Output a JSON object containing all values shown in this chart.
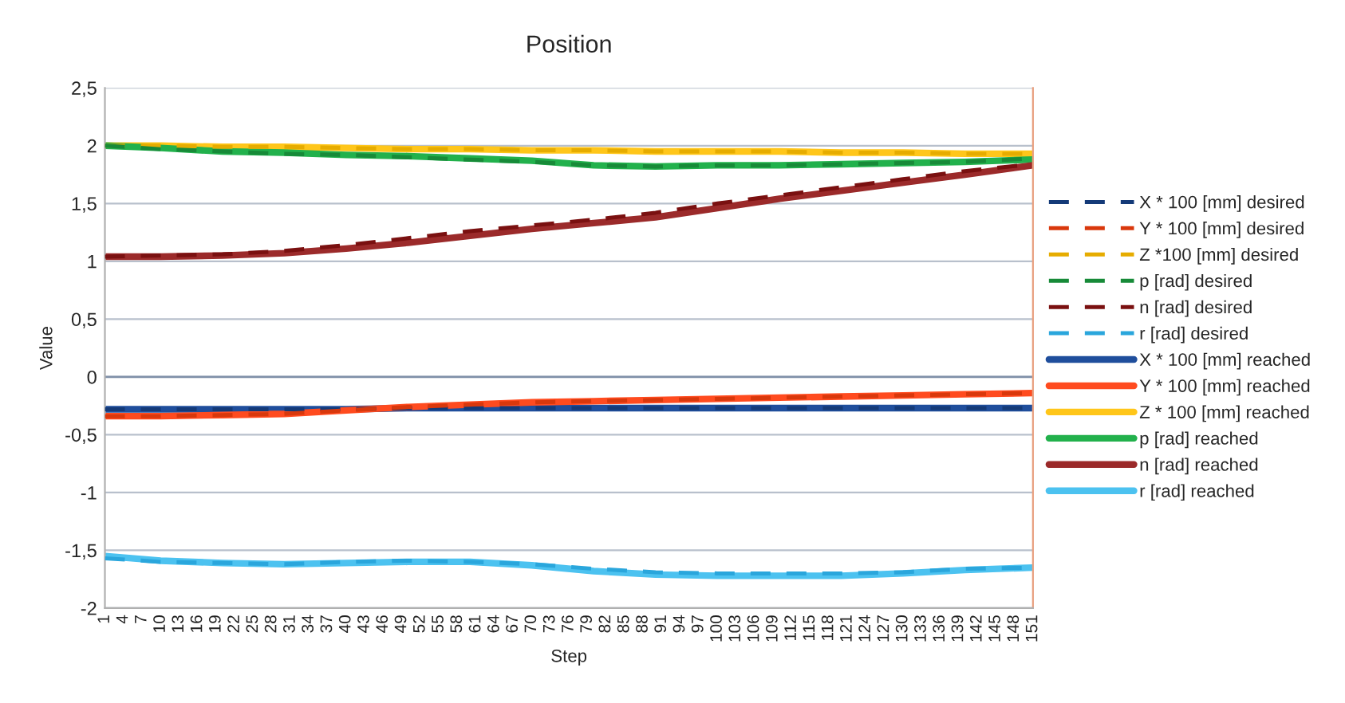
{
  "chart_data": {
    "type": "line",
    "title": "Position",
    "xlabel": "Step",
    "ylabel": "Value",
    "xlim": [
      1,
      151
    ],
    "xticks": [
      1,
      4,
      7,
      10,
      13,
      16,
      19,
      22,
      25,
      28,
      31,
      34,
      37,
      40,
      43,
      46,
      49,
      52,
      55,
      58,
      61,
      64,
      67,
      70,
      73,
      76,
      79,
      82,
      85,
      88,
      91,
      94,
      97,
      100,
      103,
      106,
      109,
      112,
      115,
      118,
      121,
      124,
      127,
      130,
      133,
      136,
      139,
      142,
      145,
      148,
      151
    ],
    "ylim": [
      -2,
      2.5
    ],
    "yticks": [
      {
        "value": -2,
        "label": "-2"
      },
      {
        "value": -1.5,
        "label": "-1,5"
      },
      {
        "value": -1,
        "label": "-1"
      },
      {
        "value": -0.5,
        "label": "-0,5"
      },
      {
        "value": 0,
        "label": "0"
      },
      {
        "value": 0.5,
        "label": "0,5"
      },
      {
        "value": 1,
        "label": "1"
      },
      {
        "value": 1.5,
        "label": "1,5"
      },
      {
        "value": 2,
        "label": "2"
      },
      {
        "value": 2.5,
        "label": "2,5"
      }
    ],
    "grid": "y",
    "legend": "right",
    "marker": "none",
    "series": [
      {
        "name": "X * 100 [mm] desired",
        "color": "#143a78",
        "line_style": "dashed",
        "x": [
          1,
          10,
          20,
          30,
          40,
          50,
          60,
          70,
          80,
          90,
          100,
          110,
          120,
          130,
          140,
          151
        ],
        "values": [
          -0.28,
          -0.28,
          -0.28,
          -0.28,
          -0.28,
          -0.27,
          -0.27,
          -0.27,
          -0.27,
          -0.27,
          -0.27,
          -0.27,
          -0.27,
          -0.27,
          -0.27,
          -0.27
        ]
      },
      {
        "name": "Y * 100 [mm] desired",
        "color": "#d9380c",
        "line_style": "dashed",
        "x": [
          1,
          10,
          20,
          30,
          40,
          50,
          60,
          70,
          80,
          90,
          100,
          110,
          120,
          130,
          140,
          151
        ],
        "values": [
          -0.34,
          -0.34,
          -0.33,
          -0.32,
          -0.29,
          -0.26,
          -0.24,
          -0.22,
          -0.21,
          -0.2,
          -0.19,
          -0.18,
          -0.17,
          -0.16,
          -0.15,
          -0.14
        ]
      },
      {
        "name": "Z *100 [mm] desired",
        "color": "#e6ac00",
        "line_style": "dashed",
        "x": [
          1,
          10,
          20,
          30,
          40,
          50,
          60,
          70,
          80,
          90,
          100,
          110,
          120,
          130,
          140,
          151
        ],
        "values": [
          2.0,
          2.0,
          1.99,
          1.99,
          1.98,
          1.97,
          1.97,
          1.96,
          1.96,
          1.95,
          1.95,
          1.95,
          1.94,
          1.94,
          1.93,
          1.93
        ]
      },
      {
        "name": "p [rad] desired",
        "color": "#178a38",
        "line_style": "dashed",
        "x": [
          1,
          10,
          20,
          30,
          40,
          50,
          60,
          70,
          80,
          90,
          100,
          110,
          120,
          130,
          140,
          151
        ],
        "values": [
          2.0,
          1.97,
          1.95,
          1.93,
          1.92,
          1.9,
          1.88,
          1.86,
          1.83,
          1.82,
          1.83,
          1.83,
          1.84,
          1.85,
          1.86,
          1.89
        ]
      },
      {
        "name": "n [rad] desired",
        "color": "#7a1010",
        "line_style": "dashed",
        "x": [
          1,
          10,
          20,
          30,
          40,
          50,
          60,
          70,
          80,
          90,
          100,
          110,
          120,
          130,
          140,
          151
        ],
        "values": [
          1.04,
          1.05,
          1.06,
          1.09,
          1.14,
          1.2,
          1.26,
          1.31,
          1.36,
          1.42,
          1.5,
          1.57,
          1.64,
          1.71,
          1.78,
          1.84
        ]
      },
      {
        "name": "r [rad] desired",
        "color": "#2aa6dc",
        "line_style": "dashed",
        "x": [
          1,
          10,
          20,
          30,
          40,
          50,
          60,
          70,
          80,
          90,
          100,
          110,
          120,
          130,
          140,
          151
        ],
        "values": [
          -1.57,
          -1.6,
          -1.61,
          -1.62,
          -1.6,
          -1.59,
          -1.6,
          -1.62,
          -1.66,
          -1.69,
          -1.7,
          -1.7,
          -1.7,
          -1.69,
          -1.66,
          -1.65
        ]
      },
      {
        "name": "X * 100 [mm] reached",
        "color": "#1f4e9c",
        "line_style": "solid",
        "x": [
          1,
          10,
          20,
          30,
          40,
          50,
          60,
          70,
          80,
          90,
          100,
          110,
          120,
          130,
          140,
          151
        ],
        "values": [
          -0.28,
          -0.28,
          -0.28,
          -0.28,
          -0.28,
          -0.27,
          -0.27,
          -0.27,
          -0.27,
          -0.27,
          -0.27,
          -0.27,
          -0.27,
          -0.27,
          -0.27,
          -0.27
        ]
      },
      {
        "name": "Y * 100 [mm] reached",
        "color": "#ff4b1f",
        "line_style": "solid",
        "x": [
          1,
          10,
          20,
          30,
          40,
          50,
          60,
          70,
          80,
          90,
          100,
          110,
          120,
          130,
          140,
          151
        ],
        "values": [
          -0.34,
          -0.34,
          -0.33,
          -0.32,
          -0.29,
          -0.26,
          -0.24,
          -0.22,
          -0.21,
          -0.2,
          -0.19,
          -0.18,
          -0.17,
          -0.16,
          -0.15,
          -0.14
        ]
      },
      {
        "name": "Z * 100 [mm] reached",
        "color": "#ffc61a",
        "line_style": "solid",
        "x": [
          1,
          10,
          20,
          30,
          40,
          50,
          60,
          70,
          80,
          90,
          100,
          110,
          120,
          130,
          140,
          151
        ],
        "values": [
          2.0,
          2.0,
          1.99,
          1.99,
          1.98,
          1.97,
          1.97,
          1.96,
          1.96,
          1.95,
          1.95,
          1.95,
          1.94,
          1.94,
          1.93,
          1.93
        ]
      },
      {
        "name": "p [rad] reached",
        "color": "#22b14c",
        "line_style": "solid",
        "x": [
          1,
          10,
          20,
          30,
          40,
          50,
          60,
          70,
          80,
          90,
          100,
          110,
          120,
          130,
          140,
          151
        ],
        "values": [
          2.0,
          1.98,
          1.95,
          1.94,
          1.92,
          1.91,
          1.89,
          1.87,
          1.83,
          1.82,
          1.83,
          1.83,
          1.84,
          1.85,
          1.86,
          1.88
        ]
      },
      {
        "name": "n [rad] reached",
        "color": "#9b2a2a",
        "line_style": "solid",
        "x": [
          1,
          10,
          20,
          30,
          40,
          50,
          60,
          70,
          80,
          90,
          100,
          110,
          120,
          130,
          140,
          151
        ],
        "values": [
          1.04,
          1.04,
          1.05,
          1.07,
          1.11,
          1.16,
          1.22,
          1.28,
          1.33,
          1.38,
          1.46,
          1.54,
          1.61,
          1.68,
          1.75,
          1.83
        ]
      },
      {
        "name": "r [rad] reached",
        "color": "#4cc2f0",
        "line_style": "solid",
        "x": [
          1,
          10,
          20,
          30,
          40,
          50,
          60,
          70,
          80,
          90,
          100,
          110,
          120,
          130,
          140,
          151
        ],
        "values": [
          -1.55,
          -1.59,
          -1.61,
          -1.62,
          -1.61,
          -1.6,
          -1.6,
          -1.63,
          -1.68,
          -1.71,
          -1.72,
          -1.72,
          -1.72,
          -1.7,
          -1.67,
          -1.65
        ]
      }
    ]
  }
}
